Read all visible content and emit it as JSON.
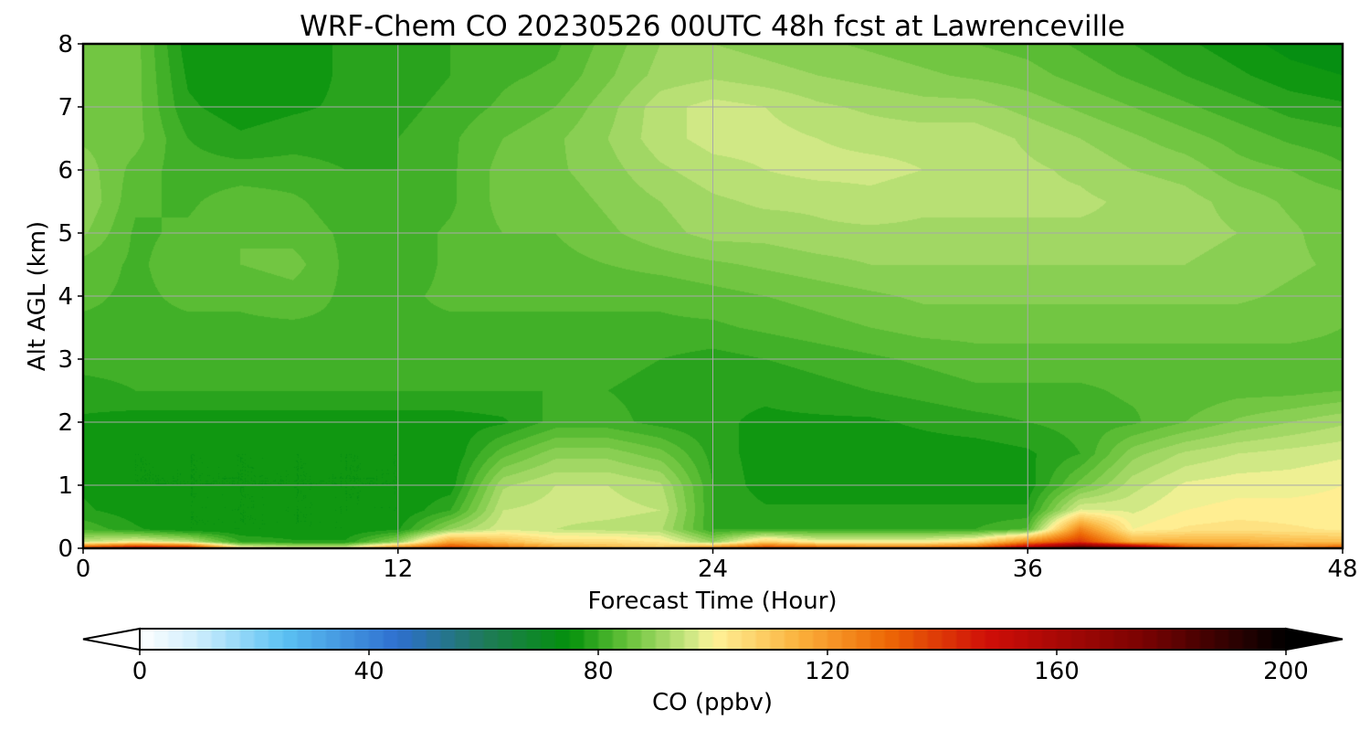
{
  "chart_data": {
    "type": "heatmap",
    "title": "WRF-Chem CO  20230526 00UTC 48h fcst at Lawrenceville",
    "xlabel": "Forecast Time (Hour)",
    "ylabel": "Alt AGL (km)",
    "xlim": [
      0,
      48
    ],
    "ylim": [
      0,
      8
    ],
    "xticks": [
      0,
      12,
      24,
      36,
      48
    ],
    "yticks": [
      0,
      1,
      2,
      3,
      4,
      5,
      6,
      7,
      8
    ],
    "grid": true,
    "colorbar": {
      "label": "CO  (ppbv)",
      "vmin": 0,
      "vmax": 200,
      "ticks": [
        0,
        40,
        80,
        120,
        160,
        200
      ],
      "extend": "both",
      "stops": [
        {
          "v": 0,
          "c": "#ffffff"
        },
        {
          "v": 10,
          "c": "#cfeefd"
        },
        {
          "v": 25,
          "c": "#5cc2f3"
        },
        {
          "v": 45,
          "c": "#2e6fcf"
        },
        {
          "v": 60,
          "c": "#1f7a5a"
        },
        {
          "v": 75,
          "c": "#04910b"
        },
        {
          "v": 85,
          "c": "#66c23a"
        },
        {
          "v": 97,
          "c": "#d7eb8a"
        },
        {
          "v": 100,
          "c": "#fff39a"
        },
        {
          "v": 115,
          "c": "#fbb13c"
        },
        {
          "v": 130,
          "c": "#ee6a06"
        },
        {
          "v": 148,
          "c": "#cf0e08"
        },
        {
          "v": 175,
          "c": "#7a0202"
        },
        {
          "v": 200,
          "c": "#000000"
        }
      ]
    },
    "x": [
      0,
      2,
      4,
      6,
      8,
      10,
      12,
      14,
      16,
      18,
      20,
      22,
      24,
      26,
      28,
      30,
      32,
      34,
      36,
      38,
      40,
      42,
      44,
      46,
      48
    ],
    "y": [
      0,
      0.1,
      0.3,
      0.6,
      1,
      1.5,
      2,
      2.5,
      3,
      3.5,
      4,
      4.5,
      5,
      5.5,
      6,
      6.5,
      7,
      7.5,
      8
    ],
    "z": [
      [
        140,
        155,
        150,
        105,
        100,
        100,
        125,
        140,
        130,
        120,
        115,
        110,
        125,
        140,
        135,
        130,
        130,
        135,
        160,
        190,
        175,
        140,
        130,
        125,
        135
      ],
      [
        95,
        100,
        95,
        80,
        78,
        78,
        90,
        118,
        112,
        105,
        105,
        102,
        90,
        108,
        100,
        100,
        100,
        105,
        125,
        140,
        115,
        115,
        115,
        113,
        112
      ],
      [
        82,
        78,
        75,
        75,
        75,
        75,
        77,
        90,
        97,
        95,
        94,
        93,
        80,
        80,
        80,
        80,
        80,
        80,
        83,
        125,
        100,
        103,
        104,
        103,
        102
      ],
      [
        78,
        76,
        75,
        75,
        75,
        75,
        75,
        80,
        95,
        96,
        96,
        95,
        80,
        78,
        78,
        78,
        78,
        78,
        78,
        98,
        97,
        100,
        101,
        101,
        101
      ],
      [
        77,
        75,
        75,
        75,
        75,
        75,
        75,
        76,
        92,
        95,
        95,
        93,
        80,
        76,
        76,
        76,
        76,
        76,
        76,
        86,
        94,
        98,
        99,
        99,
        100
      ],
      [
        76,
        75,
        75,
        75,
        75,
        75,
        75,
        75,
        84,
        89,
        89,
        86,
        79,
        76,
        76,
        76,
        76,
        76,
        77,
        80,
        89,
        93,
        95,
        96,
        97
      ],
      [
        77,
        76,
        76,
        76,
        76,
        76,
        76,
        76,
        77,
        81,
        81,
        79,
        78,
        77,
        77,
        77,
        78,
        79,
        80,
        81,
        82,
        85,
        88,
        90,
        92
      ],
      [
        79,
        80,
        80,
        80,
        80,
        80,
        80,
        80,
        80,
        80,
        80,
        79,
        78,
        78,
        79,
        80,
        81,
        82,
        82,
        82,
        83,
        83,
        84,
        84,
        85
      ],
      [
        81,
        81,
        81,
        81,
        82,
        82,
        82,
        82,
        81,
        80,
        81,
        80,
        79,
        80,
        81,
        82,
        83,
        84,
        84,
        84,
        84,
        84,
        84,
        84,
        84
      ],
      [
        82,
        82,
        82,
        82,
        82,
        82,
        82,
        82,
        82,
        82,
        82,
        82,
        82,
        83,
        84,
        85,
        86,
        86,
        86,
        86,
        86,
        86,
        86,
        86,
        85
      ],
      [
        83,
        82,
        83,
        83,
        84,
        82,
        82,
        83,
        83,
        83,
        83,
        83,
        84,
        85,
        86,
        87,
        88,
        88,
        88,
        88,
        88,
        88,
        88,
        87,
        86
      ],
      [
        84,
        82,
        84,
        85,
        86,
        82,
        81,
        83,
        84,
        84,
        85,
        86,
        87,
        88,
        89,
        90,
        90,
        90,
        90,
        90,
        90,
        90,
        89,
        88,
        87
      ],
      [
        88,
        82,
        83,
        85,
        84,
        82,
        81,
        83,
        85,
        85,
        87,
        89,
        91,
        91,
        92,
        92,
        92,
        92,
        92,
        92,
        92,
        91,
        90,
        88,
        86
      ],
      [
        90,
        83,
        82,
        84,
        83,
        81,
        80,
        82,
        86,
        86,
        88,
        90,
        92,
        93,
        93,
        94,
        93,
        93,
        93,
        93,
        92,
        91,
        89,
        87,
        86
      ],
      [
        89,
        84,
        81,
        81,
        81,
        80,
        80,
        82,
        86,
        87,
        89,
        92,
        94,
        95,
        96,
        96,
        95,
        94,
        93,
        92,
        90,
        89,
        86,
        85,
        83
      ],
      [
        87,
        86,
        80,
        78,
        79,
        79,
        80,
        82,
        85,
        87,
        90,
        94,
        96,
        96,
        95,
        94,
        94,
        94,
        92,
        90,
        88,
        86,
        84,
        82,
        81
      ],
      [
        85,
        86,
        78,
        76,
        77,
        78,
        79,
        81,
        83,
        85,
        89,
        94,
        96,
        95,
        93,
        92,
        91,
        91,
        89,
        87,
        85,
        83,
        81,
        79,
        78
      ],
      [
        85,
        86,
        77,
        75,
        76,
        78,
        78,
        80,
        82,
        83,
        87,
        91,
        92,
        91,
        90,
        89,
        88,
        87,
        86,
        84,
        82,
        80,
        78,
        76,
        75
      ],
      [
        85,
        86,
        76,
        75,
        76,
        78,
        78,
        80,
        81,
        82,
        86,
        90,
        90,
        89,
        88,
        87,
        86,
        85,
        84,
        82,
        80,
        78,
        76,
        74,
        73
      ]
    ]
  }
}
